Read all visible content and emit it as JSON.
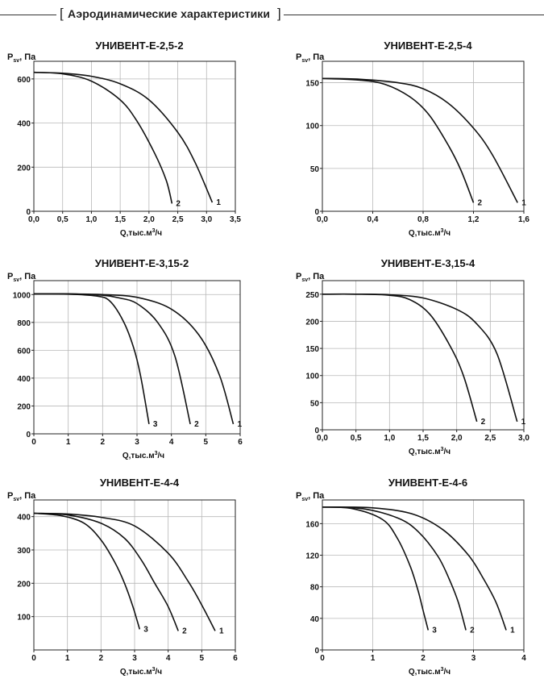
{
  "header": {
    "title": "Аэродинамические характеристики"
  },
  "chart_data": [
    {
      "type": "line",
      "title": "УНИВЕНТ-Е-2,5-2",
      "ylabel": "P",
      "ylabel_sub": "sv",
      "ylabel_unit": ", Па",
      "xlabel": "Q,тыс.м",
      "xlabel_sup": "3",
      "xlabel_unit": "/ч",
      "xlim": [
        0,
        3.5
      ],
      "ylim": [
        0,
        680
      ],
      "xticks": [
        0,
        0.5,
        1,
        1.5,
        2,
        2.5,
        3,
        3.5
      ],
      "xtick_labels": [
        "0,0",
        "0,5",
        "1,0",
        "1,5",
        "2,0",
        "2,5",
        "3,0",
        "3,5"
      ],
      "yticks": [
        0,
        200,
        400,
        600
      ],
      "ytick_labels": [
        "0",
        "200",
        "400",
        "600"
      ],
      "grid": true,
      "series": [
        {
          "name": "1",
          "x": [
            0,
            0.5,
            1.0,
            1.5,
            2.0,
            2.5,
            2.8,
            3.1
          ],
          "y": [
            630,
            626,
            612,
            578,
            505,
            358,
            222,
            40
          ]
        },
        {
          "name": "2",
          "x": [
            0,
            0.5,
            1.0,
            1.5,
            1.8,
            2.1,
            2.3,
            2.4
          ],
          "y": [
            630,
            623,
            590,
            505,
            405,
            262,
            140,
            35
          ]
        }
      ]
    },
    {
      "type": "line",
      "title": "УНИВЕНТ-Е-2,5-4",
      "ylabel": "P",
      "ylabel_sub": "sv",
      "ylabel_unit": ", Па",
      "xlabel": "Q,тыс.м",
      "xlabel_sup": "3",
      "xlabel_unit": "/ч",
      "xlim": [
        0,
        1.6
      ],
      "ylim": [
        0,
        175
      ],
      "xticks": [
        0,
        0.4,
        0.8,
        1.2,
        1.6
      ],
      "xtick_labels": [
        "0,0",
        "0,4",
        "0,8",
        "1,2",
        "1,6"
      ],
      "yticks": [
        0,
        50,
        100,
        150
      ],
      "ytick_labels": [
        "0",
        "50",
        "100",
        "150"
      ],
      "grid": true,
      "series": [
        {
          "name": "1",
          "x": [
            0,
            0.3,
            0.6,
            0.8,
            1.0,
            1.2,
            1.35,
            1.55
          ],
          "y": [
            155,
            154,
            150,
            143,
            126,
            97,
            66,
            10
          ]
        },
        {
          "name": "2",
          "x": [
            0,
            0.3,
            0.5,
            0.7,
            0.85,
            1.0,
            1.1,
            1.2
          ],
          "y": [
            155,
            153,
            148,
            133,
            112,
            77,
            48,
            10
          ]
        }
      ]
    },
    {
      "type": "line",
      "title": "УНИВЕНТ-Е-3,15-2",
      "ylabel": "P",
      "ylabel_sub": "sv",
      "ylabel_unit": ", Па",
      "xlabel": "Q,тыс.м",
      "xlabel_sup": "3",
      "xlabel_unit": "/ч",
      "xlim": [
        0,
        6
      ],
      "ylim": [
        0,
        1100
      ],
      "xticks": [
        0,
        1,
        2,
        3,
        4,
        5,
        6
      ],
      "xtick_labels": [
        "0",
        "1",
        "2",
        "3",
        "4",
        "5",
        "6"
      ],
      "yticks": [
        0,
        200,
        400,
        600,
        800,
        1000
      ],
      "ytick_labels": [
        "0",
        "200",
        "400",
        "600",
        "800",
        "1000"
      ],
      "grid": true,
      "series": [
        {
          "name": "1",
          "x": [
            0,
            1,
            2,
            3,
            4,
            4.8,
            5.4,
            5.8
          ],
          "y": [
            1005,
            1005,
            1000,
            980,
            895,
            710,
            420,
            70
          ]
        },
        {
          "name": "2",
          "x": [
            0,
            1,
            2,
            2.5,
            3,
            3.6,
            4.1,
            4.55
          ],
          "y": [
            1005,
            1005,
            995,
            975,
            935,
            800,
            560,
            70
          ]
        },
        {
          "name": "3",
          "x": [
            0,
            1,
            1.8,
            2.2,
            2.6,
            2.9,
            3.1,
            3.35
          ],
          "y": [
            1005,
            1003,
            990,
            955,
            810,
            620,
            420,
            70
          ]
        }
      ]
    },
    {
      "type": "line",
      "title": "УНИВЕНТ-Е-3,15-4",
      "ylabel": "P",
      "ylabel_sub": "sv",
      "ylabel_unit": ", Па",
      "xlabel": "Q,тыс.м",
      "xlabel_sup": "3",
      "xlabel_unit": "/ч",
      "xlim": [
        0,
        3
      ],
      "ylim": [
        0,
        275
      ],
      "xticks": [
        0,
        0.5,
        1,
        1.5,
        2,
        2.5,
        3
      ],
      "xtick_labels": [
        "0,0",
        "0,5",
        "1,0",
        "1,5",
        "2,0",
        "2,5",
        "3,0"
      ],
      "yticks": [
        0,
        50,
        100,
        150,
        200,
        250
      ],
      "ytick_labels": [
        "0",
        "50",
        "100",
        "150",
        "200",
        "250"
      ],
      "grid": true,
      "series": [
        {
          "name": "1",
          "x": [
            0,
            0.5,
            1.0,
            1.5,
            2.0,
            2.3,
            2.6,
            2.9
          ],
          "y": [
            250,
            250,
            249,
            243,
            222,
            195,
            140,
            15
          ]
        },
        {
          "name": "2",
          "x": [
            0,
            0.5,
            1.0,
            1.3,
            1.6,
            1.9,
            2.1,
            2.3
          ],
          "y": [
            250,
            250,
            248,
            240,
            213,
            155,
            100,
            15
          ]
        }
      ]
    },
    {
      "type": "line",
      "title": "УНИВЕНТ-Е-4-4",
      "ylabel": "P",
      "ylabel_sub": "sv",
      "ylabel_unit": ", Па",
      "xlabel": "Q,тыс.м",
      "xlabel_sup": "3",
      "xlabel_unit": "/ч",
      "xlim": [
        0,
        6
      ],
      "ylim": [
        0,
        450
      ],
      "xticks": [
        0,
        1,
        2,
        3,
        4,
        5,
        6
      ],
      "xtick_labels": [
        "0",
        "1",
        "2",
        "3",
        "4",
        "5",
        "6"
      ],
      "yticks": [
        100,
        200,
        300,
        400
      ],
      "ytick_labels": [
        "100",
        "200",
        "300",
        "400"
      ],
      "grid": true,
      "series": [
        {
          "name": "1",
          "x": [
            0,
            1,
            2,
            3,
            4,
            4.6,
            5.0,
            5.4
          ],
          "y": [
            410,
            408,
            398,
            372,
            290,
            205,
            135,
            57
          ]
        },
        {
          "name": "2",
          "x": [
            0,
            1,
            2,
            2.7,
            3.2,
            3.6,
            4.0,
            4.3
          ],
          "y": [
            410,
            405,
            380,
            335,
            270,
            200,
            130,
            57
          ]
        },
        {
          "name": "3",
          "x": [
            0,
            0.8,
            1.5,
            2.0,
            2.4,
            2.7,
            2.95,
            3.15
          ],
          "y": [
            410,
            403,
            380,
            330,
            265,
            200,
            130,
            62
          ]
        }
      ]
    },
    {
      "type": "line",
      "title": "УНИВЕНТ-Е-4-6",
      "ylabel": "P",
      "ylabel_sub": "sv",
      "ylabel_unit": ", Па",
      "xlabel": "Q,тыс.м",
      "xlabel_sup": "3",
      "xlabel_unit": "/ч",
      "xlim": [
        0,
        4
      ],
      "ylim": [
        0,
        190
      ],
      "xticks": [
        0,
        1,
        2,
        3,
        4
      ],
      "xtick_labels": [
        "0",
        "1",
        "2",
        "3",
        "4"
      ],
      "yticks": [
        0,
        40,
        80,
        120,
        160
      ],
      "ytick_labels": [
        "0",
        "40",
        "80",
        "120",
        "160"
      ],
      "grid": true,
      "series": [
        {
          "name": "1",
          "x": [
            0,
            1,
            1.8,
            2.4,
            2.9,
            3.2,
            3.45,
            3.65
          ],
          "y": [
            181,
            180,
            172,
            152,
            120,
            90,
            60,
            25
          ]
        },
        {
          "name": "2",
          "x": [
            0,
            0.8,
            1.5,
            1.9,
            2.3,
            2.55,
            2.7,
            2.85
          ],
          "y": [
            181,
            179,
            167,
            150,
            118,
            85,
            60,
            25
          ]
        },
        {
          "name": "3",
          "x": [
            0,
            0.6,
            1.2,
            1.5,
            1.75,
            1.9,
            2.0,
            2.1
          ],
          "y": [
            181,
            179,
            165,
            140,
            105,
            75,
            50,
            25
          ]
        }
      ]
    }
  ]
}
